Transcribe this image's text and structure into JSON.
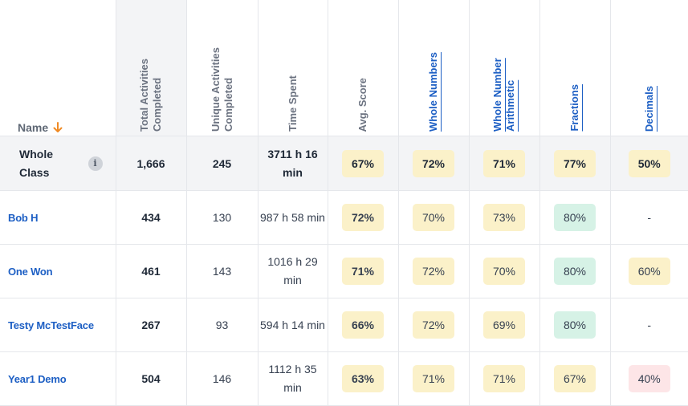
{
  "header": {
    "name": "Name",
    "total_activities": "Total Activities Completed",
    "unique_activities": "Unique Activities Completed",
    "time_spent": "Time Spent",
    "avg_score": "Avg. Score",
    "strands": [
      "Whole Numbers",
      "Whole Number Arithmetic",
      "Fractions",
      "Decimals"
    ]
  },
  "whole_class": {
    "label": "Whole Class",
    "info": "i",
    "total": "1,666",
    "unique": "245",
    "time": "3711 h 16 min",
    "avg": "67%",
    "scores": [
      "72%",
      "71%",
      "77%",
      "50%"
    ]
  },
  "students": [
    {
      "name": "Bob H",
      "total": "434",
      "unique": "130",
      "time": "987 h 58 min",
      "avg": "72%",
      "scores": [
        "70%",
        "73%",
        "80%",
        "-"
      ]
    },
    {
      "name": "One Won",
      "total": "461",
      "unique": "143",
      "time": "1016 h 29 min",
      "avg": "71%",
      "scores": [
        "72%",
        "70%",
        "80%",
        "60%"
      ]
    },
    {
      "name": "Testy McTestFace",
      "total": "267",
      "unique": "93",
      "time": "594 h 14 min",
      "avg": "66%",
      "scores": [
        "72%",
        "69%",
        "80%",
        "-"
      ]
    },
    {
      "name": "Year1 Demo",
      "total": "504",
      "unique": "146",
      "time": "1112 h 35 min",
      "avg": "63%",
      "scores": [
        "71%",
        "71%",
        "67%",
        "40%"
      ]
    }
  ],
  "colors": {
    "yellow": "#fbf1c9",
    "green": "#d6f2e6",
    "red": "#fde5e7",
    "link": "#1d5fc4",
    "sort_arrow": "#f08a24"
  },
  "icons": {
    "sort": "arrow-down-icon",
    "info": "info-icon"
  }
}
